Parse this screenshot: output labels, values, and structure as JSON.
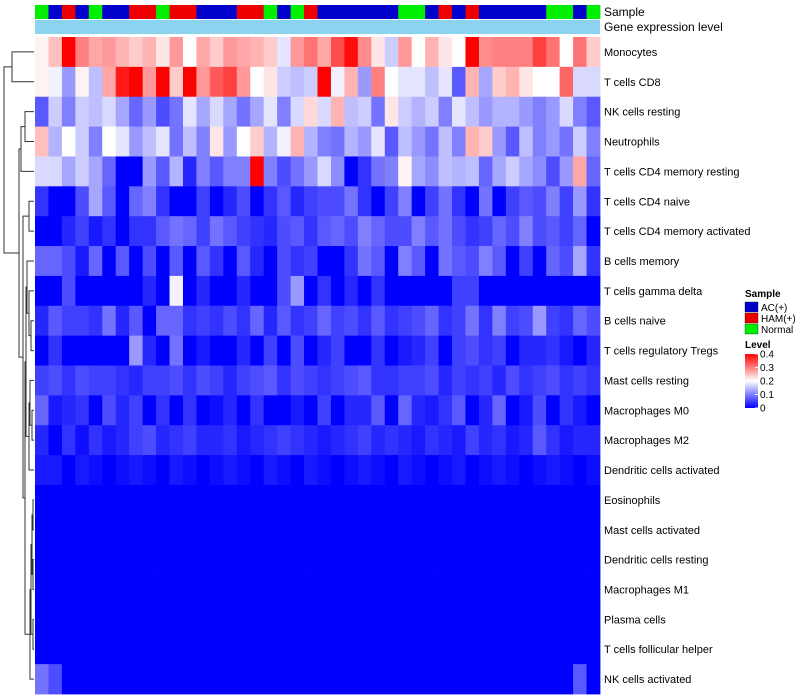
{
  "chart_data": {
    "type": "heatmap",
    "annotation_rows": [
      "Sample",
      "Gene expression level"
    ],
    "rows": [
      "Monocytes",
      "T cells CD8",
      "NK cells resting",
      "Neutrophils",
      "T cells CD4 memory resting",
      "T cells CD4 naive",
      "T cells CD4 memory activated",
      "B cells memory",
      "T cells gamma delta",
      "B cells naive",
      "T cells regulatory  Tregs",
      "Mast cells resting",
      "Macrophages M0",
      "Macrophages M2",
      "Dendritic cells activated",
      "Eosinophils",
      "Mast cells activated",
      "Dendritic cells resting",
      "Macrophages M1",
      "Plasma cells",
      "T cells follicular helper",
      "NK cells activated"
    ],
    "samples": [
      "Normal",
      "AC(+)",
      "HAM(+)",
      "AC(+)",
      "Normal",
      "AC(+)",
      "AC(+)",
      "HAM(+)",
      "HAM(+)",
      "Normal",
      "HAM(+)",
      "HAM(+)",
      "AC(+)",
      "AC(+)",
      "AC(+)",
      "HAM(+)",
      "HAM(+)",
      "Normal",
      "AC(+)",
      "Normal",
      "HAM(+)",
      "AC(+)",
      "AC(+)",
      "AC(+)",
      "AC(+)",
      "AC(+)",
      "AC(+)",
      "Normal",
      "Normal",
      "AC(+)",
      "HAM(+)",
      "AC(+)",
      "HAM(+)",
      "AC(+)",
      "AC(+)",
      "AC(+)",
      "AC(+)",
      "AC(+)",
      "Normal",
      "Normal",
      "AC(+)",
      "Normal"
    ],
    "values": [
      [
        0.21,
        0.25,
        0.4,
        0.3,
        0.27,
        0.28,
        0.26,
        0.24,
        0.26,
        0.22,
        0.28,
        0.2,
        0.27,
        0.24,
        0.28,
        0.27,
        0.26,
        0.24,
        0.18,
        0.28,
        0.31,
        0.27,
        0.34,
        0.39,
        0.29,
        0.22,
        0.16,
        0.28,
        0.2,
        0.26,
        0.22,
        0.2,
        0.4,
        0.29,
        0.3,
        0.3,
        0.3,
        0.35,
        0.31,
        0.2,
        0.31,
        0.24
      ],
      [
        0.21,
        0.19,
        0.12,
        0.21,
        0.15,
        0.27,
        0.38,
        0.4,
        0.28,
        0.4,
        0.24,
        0.4,
        0.28,
        0.33,
        0.35,
        0.28,
        0.2,
        0.22,
        0.16,
        0.15,
        0.16,
        0.4,
        0.19,
        0.26,
        0.12,
        0.3,
        0.2,
        0.18,
        0.18,
        0.15,
        0.18,
        0.07,
        0.26,
        0.13,
        0.24,
        0.26,
        0.22,
        0.2,
        0.2,
        0.32,
        0.17,
        0.17
      ],
      [
        0.07,
        0.16,
        0.1,
        0.16,
        0.15,
        0.17,
        0.13,
        0.08,
        0.12,
        0.06,
        0.09,
        0.18,
        0.13,
        0.17,
        0.13,
        0.09,
        0.13,
        0.18,
        0.1,
        0.17,
        0.23,
        0.17,
        0.26,
        0.15,
        0.16,
        0.09,
        0.22,
        0.16,
        0.14,
        0.16,
        0.1,
        0.18,
        0.15,
        0.12,
        0.14,
        0.14,
        0.12,
        0.1,
        0.12,
        0.17,
        0.1,
        0.07
      ],
      [
        0.25,
        0.14,
        0.2,
        0.16,
        0.1,
        0.2,
        0.18,
        0.12,
        0.15,
        0.18,
        0.09,
        0.15,
        0.1,
        0.22,
        0.12,
        0.2,
        0.24,
        0.14,
        0.19,
        0.26,
        0.14,
        0.1,
        0.09,
        0.14,
        0.12,
        0.18,
        0.07,
        0.15,
        0.12,
        0.09,
        0.15,
        0.1,
        0.26,
        0.24,
        0.12,
        0.07,
        0.15,
        0.1,
        0.12,
        0.09,
        0.16,
        0.1
      ],
      [
        0.17,
        0.17,
        0.13,
        0.16,
        0.13,
        0.08,
        0.0,
        0.0,
        0.12,
        0.07,
        0.14,
        0.03,
        0.1,
        0.07,
        0.1,
        0.1,
        0.4,
        0.1,
        0.06,
        0.09,
        0.12,
        0.17,
        0.11,
        0.0,
        0.04,
        0.09,
        0.1,
        0.21,
        0.13,
        0.11,
        0.15,
        0.14,
        0.15,
        0.08,
        0.13,
        0.16,
        0.13,
        0.11,
        0.06,
        0.12,
        0.27,
        0.08
      ],
      [
        0.04,
        0.0,
        0.0,
        0.06,
        0.13,
        0.07,
        0.0,
        0.08,
        0.1,
        0.04,
        0.0,
        0.0,
        0.05,
        0.0,
        0.03,
        0.06,
        0.0,
        0.04,
        0.07,
        0.03,
        0.05,
        0.06,
        0.06,
        0.09,
        0.04,
        0.0,
        0.05,
        0.1,
        0.0,
        0.05,
        0.09,
        0.04,
        0.0,
        0.09,
        0.0,
        0.05,
        0.07,
        0.06,
        0.1,
        0.05,
        0.12,
        0.04
      ],
      [
        0.0,
        0.0,
        0.03,
        0.05,
        0.02,
        0.04,
        0.0,
        0.04,
        0.04,
        0.07,
        0.09,
        0.08,
        0.05,
        0.09,
        0.07,
        0.05,
        0.04,
        0.03,
        0.06,
        0.07,
        0.04,
        0.07,
        0.08,
        0.06,
        0.1,
        0.08,
        0.06,
        0.06,
        0.1,
        0.07,
        0.09,
        0.06,
        0.04,
        0.05,
        0.08,
        0.06,
        0.1,
        0.06,
        0.07,
        0.05,
        0.08,
        0.0
      ],
      [
        0.08,
        0.08,
        0.06,
        0.02,
        0.08,
        0.0,
        0.07,
        0.0,
        0.06,
        0.0,
        0.07,
        0.0,
        0.07,
        0.04,
        0.0,
        0.07,
        0.03,
        0.0,
        0.06,
        0.04,
        0.05,
        0.0,
        0.0,
        0.04,
        0.09,
        0.07,
        0.0,
        0.1,
        0.07,
        0.0,
        0.09,
        0.07,
        0.06,
        0.1,
        0.07,
        0.0,
        0.05,
        0.0,
        0.08,
        0.06,
        0.13,
        0.04
      ],
      [
        0.0,
        0.0,
        0.06,
        0.0,
        0.0,
        0.0,
        0.0,
        0.0,
        0.03,
        0.0,
        0.19,
        0.0,
        0.03,
        0.0,
        0.0,
        0.03,
        0.0,
        0.0,
        0.06,
        0.12,
        0.0,
        0.04,
        0.0,
        0.03,
        0.0,
        0.04,
        0.0,
        0.0,
        0.0,
        0.0,
        0.0,
        0.05,
        0.05,
        0.0,
        0.0,
        0.0,
        0.0,
        0.0,
        0.0,
        0.0,
        0.0,
        0.0
      ],
      [
        0.03,
        0.07,
        0.05,
        0.05,
        0.04,
        0.09,
        0.03,
        0.07,
        0.0,
        0.08,
        0.08,
        0.04,
        0.05,
        0.04,
        0.06,
        0.04,
        0.08,
        0.03,
        0.07,
        0.04,
        0.05,
        0.08,
        0.05,
        0.06,
        0.04,
        0.07,
        0.04,
        0.05,
        0.06,
        0.08,
        0.04,
        0.05,
        0.09,
        0.04,
        0.1,
        0.05,
        0.06,
        0.12,
        0.05,
        0.04,
        0.08,
        0.06
      ],
      [
        0.0,
        0.04,
        0.0,
        0.0,
        0.0,
        0.0,
        0.0,
        0.12,
        0.03,
        0.0,
        0.09,
        0.0,
        0.02,
        0.0,
        0.0,
        0.03,
        0.0,
        0.05,
        0.0,
        0.06,
        0.0,
        0.03,
        0.05,
        0.0,
        0.0,
        0.04,
        0.0,
        0.02,
        0.03,
        0.05,
        0.0,
        0.05,
        0.06,
        0.04,
        0.05,
        0.0,
        0.03,
        0.03,
        0.04,
        0.02,
        0.0,
        0.03
      ],
      [
        0.05,
        0.06,
        0.04,
        0.06,
        0.05,
        0.05,
        0.04,
        0.03,
        0.05,
        0.05,
        0.06,
        0.04,
        0.06,
        0.05,
        0.03,
        0.05,
        0.06,
        0.07,
        0.04,
        0.06,
        0.05,
        0.04,
        0.05,
        0.06,
        0.07,
        0.04,
        0.04,
        0.05,
        0.05,
        0.06,
        0.03,
        0.05,
        0.04,
        0.05,
        0.03,
        0.06,
        0.04,
        0.05,
        0.06,
        0.04,
        0.05,
        0.04
      ],
      [
        0.08,
        0.02,
        0.03,
        0.04,
        0.0,
        0.06,
        0.03,
        0.05,
        0.0,
        0.04,
        0.0,
        0.04,
        0.0,
        0.01,
        0.03,
        0.0,
        0.04,
        0.0,
        0.0,
        0.02,
        0.0,
        0.05,
        0.0,
        0.03,
        0.03,
        0.07,
        0.0,
        0.08,
        0.03,
        0.02,
        0.04,
        0.07,
        0.0,
        0.03,
        0.08,
        0.0,
        0.02,
        0.06,
        0.0,
        0.04,
        0.02,
        0.0
      ],
      [
        0.03,
        0.0,
        0.04,
        0.01,
        0.04,
        0.02,
        0.03,
        0.05,
        0.06,
        0.03,
        0.04,
        0.05,
        0.03,
        0.03,
        0.04,
        0.02,
        0.03,
        0.04,
        0.05,
        0.04,
        0.03,
        0.02,
        0.03,
        0.04,
        0.05,
        0.03,
        0.04,
        0.03,
        0.02,
        0.04,
        0.03,
        0.02,
        0.05,
        0.03,
        0.04,
        0.02,
        0.03,
        0.07,
        0.04,
        0.02,
        0.03,
        0.03
      ],
      [
        0.02,
        0.02,
        0.0,
        0.02,
        0.01,
        0.0,
        0.01,
        0.02,
        0.01,
        0.0,
        0.02,
        0.01,
        0.0,
        0.01,
        0.02,
        0.01,
        0.0,
        0.02,
        0.01,
        0.0,
        0.02,
        0.01,
        0.0,
        0.01,
        0.02,
        0.01,
        0.0,
        0.02,
        0.01,
        0.0,
        0.01,
        0.02,
        0.0,
        0.01,
        0.02,
        0.01,
        0.0,
        0.01,
        0.02,
        0.01,
        0.0,
        0.01
      ],
      [
        0.0,
        0.0,
        0.0,
        0.0,
        0.0,
        0.0,
        0.0,
        0.0,
        0.0,
        0.0,
        0.0,
        0.0,
        0.0,
        0.0,
        0.0,
        0.0,
        0.0,
        0.0,
        0.0,
        0.0,
        0.0,
        0.0,
        0.0,
        0.0,
        0.0,
        0.0,
        0.0,
        0.0,
        0.0,
        0.0,
        0.0,
        0.0,
        0.0,
        0.0,
        0.0,
        0.0,
        0.0,
        0.0,
        0.0,
        0.0,
        0.0,
        0.0
      ],
      [
        0.0,
        0.0,
        0.0,
        0.0,
        0.0,
        0.0,
        0.0,
        0.0,
        0.0,
        0.0,
        0.0,
        0.0,
        0.0,
        0.0,
        0.0,
        0.0,
        0.0,
        0.0,
        0.0,
        0.0,
        0.0,
        0.0,
        0.0,
        0.0,
        0.0,
        0.0,
        0.0,
        0.0,
        0.0,
        0.0,
        0.0,
        0.0,
        0.0,
        0.0,
        0.0,
        0.0,
        0.0,
        0.0,
        0.0,
        0.0,
        0.0,
        0.0
      ],
      [
        0.0,
        0.0,
        0.0,
        0.0,
        0.0,
        0.0,
        0.0,
        0.0,
        0.0,
        0.0,
        0.0,
        0.0,
        0.0,
        0.0,
        0.0,
        0.0,
        0.0,
        0.0,
        0.0,
        0.0,
        0.0,
        0.0,
        0.0,
        0.0,
        0.0,
        0.0,
        0.0,
        0.0,
        0.0,
        0.0,
        0.0,
        0.0,
        0.0,
        0.0,
        0.0,
        0.0,
        0.0,
        0.0,
        0.0,
        0.0,
        0.0,
        0.0
      ],
      [
        0.0,
        0.0,
        0.0,
        0.0,
        0.0,
        0.0,
        0.0,
        0.0,
        0.0,
        0.0,
        0.0,
        0.0,
        0.0,
        0.0,
        0.0,
        0.0,
        0.0,
        0.0,
        0.0,
        0.0,
        0.0,
        0.0,
        0.0,
        0.0,
        0.0,
        0.0,
        0.0,
        0.0,
        0.0,
        0.0,
        0.0,
        0.0,
        0.0,
        0.0,
        0.0,
        0.0,
        0.0,
        0.0,
        0.0,
        0.0,
        0.0,
        0.0
      ],
      [
        0.0,
        0.0,
        0.0,
        0.0,
        0.0,
        0.0,
        0.0,
        0.0,
        0.0,
        0.0,
        0.0,
        0.0,
        0.0,
        0.0,
        0.0,
        0.0,
        0.0,
        0.0,
        0.0,
        0.0,
        0.0,
        0.0,
        0.0,
        0.0,
        0.0,
        0.0,
        0.0,
        0.0,
        0.0,
        0.0,
        0.0,
        0.0,
        0.0,
        0.0,
        0.0,
        0.0,
        0.0,
        0.0,
        0.0,
        0.0,
        0.0,
        0.0
      ],
      [
        0.0,
        0.0,
        0.0,
        0.0,
        0.0,
        0.0,
        0.0,
        0.0,
        0.0,
        0.0,
        0.0,
        0.0,
        0.0,
        0.0,
        0.0,
        0.0,
        0.0,
        0.0,
        0.0,
        0.0,
        0.0,
        0.0,
        0.0,
        0.0,
        0.0,
        0.0,
        0.0,
        0.0,
        0.0,
        0.0,
        0.0,
        0.0,
        0.0,
        0.0,
        0.0,
        0.0,
        0.0,
        0.0,
        0.0,
        0.0,
        0.0,
        0.0
      ],
      [
        0.09,
        0.06,
        0.0,
        0.0,
        0.0,
        0.0,
        0.0,
        0.0,
        0.0,
        0.0,
        0.0,
        0.0,
        0.0,
        0.0,
        0.0,
        0.0,
        0.0,
        0.0,
        0.0,
        0.0,
        0.0,
        0.0,
        0.0,
        0.0,
        0.0,
        0.0,
        0.0,
        0.0,
        0.0,
        0.0,
        0.0,
        0.0,
        0.0,
        0.0,
        0.0,
        0.0,
        0.0,
        0.0,
        0.0,
        0.0,
        0.07,
        0.0
      ]
    ],
    "sample_colors": {
      "AC(+)": "#0000cc",
      "HAM(+)": "#ee0000",
      "Normal": "#00ee00"
    },
    "gene_expression_color": "#8bd3ef",
    "colorscale": {
      "low": "#0000ff",
      "mid": "#ffffff",
      "high": "#ff0000",
      "domain": [
        0,
        0.4
      ]
    },
    "legend": {
      "sample_title": "Sample",
      "sample_entries": [
        "AC(+)",
        "HAM(+)",
        "Normal"
      ],
      "level_title": "Level",
      "level_ticks": [
        0.4,
        0.3,
        0.2,
        0.1,
        0
      ]
    },
    "dendrogram": "row clustering tree"
  }
}
